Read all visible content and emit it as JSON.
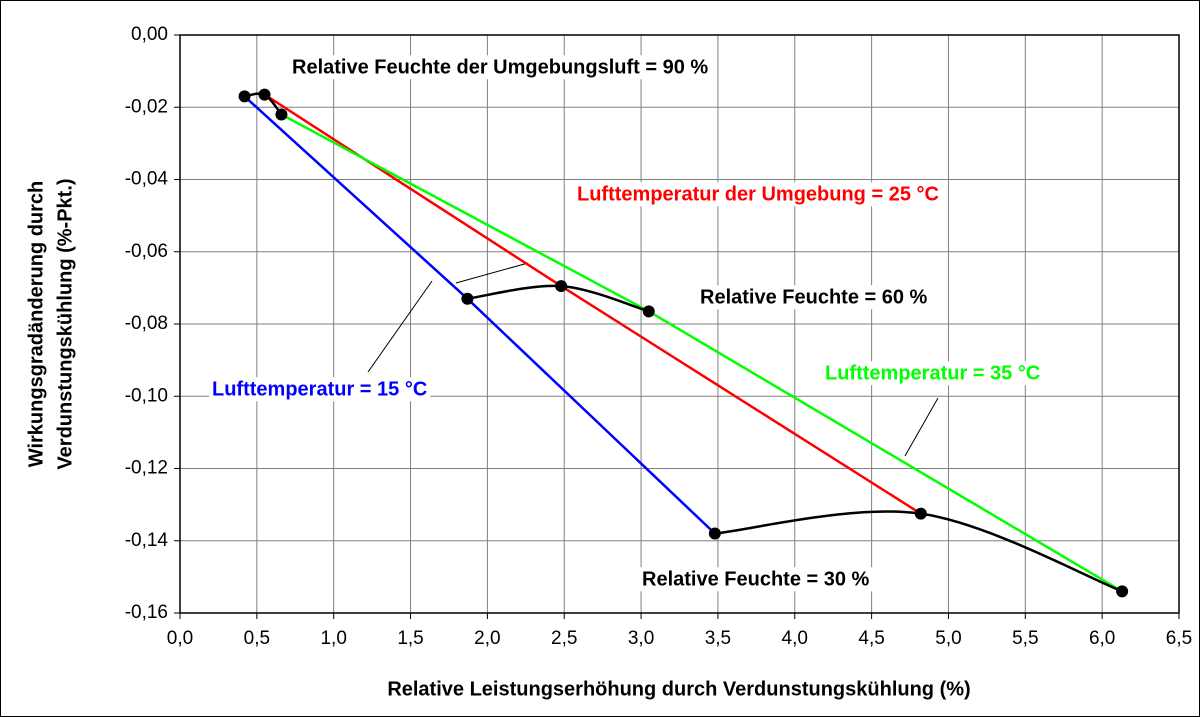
{
  "chart_data": {
    "type": "line",
    "xlabel": "Relative Leistungserhöhung durch Verdunstungskühlung (%)",
    "ylabel": [
      "Wirkungsgradänderung durch",
      "Verdunstungskühlung (%-Pkt.)"
    ],
    "xlim": [
      0,
      6.5
    ],
    "ylim": [
      -0.16,
      0
    ],
    "xticks": [
      {
        "value": 0,
        "label": "0,0"
      },
      {
        "value": 0.5,
        "label": "0,5"
      },
      {
        "value": 1,
        "label": "1,0"
      },
      {
        "value": 1.5,
        "label": "1,5"
      },
      {
        "value": 2,
        "label": "2,0"
      },
      {
        "value": 2.5,
        "label": "2,5"
      },
      {
        "value": 3,
        "label": "3,0"
      },
      {
        "value": 3.5,
        "label": "3,5"
      },
      {
        "value": 4,
        "label": "4,0"
      },
      {
        "value": 4.5,
        "label": "4,5"
      },
      {
        "value": 5,
        "label": "5,0"
      },
      {
        "value": 5.5,
        "label": "5,5"
      },
      {
        "value": 6,
        "label": "6,0"
      },
      {
        "value": 6.5,
        "label": "6,5"
      }
    ],
    "yticks": [
      {
        "value": 0,
        "label": "0,00"
      },
      {
        "value": -0.02,
        "label": "-0,02"
      },
      {
        "value": -0.04,
        "label": "-0,04"
      },
      {
        "value": -0.06,
        "label": "-0,06"
      },
      {
        "value": -0.08,
        "label": "-0,08"
      },
      {
        "value": -0.1,
        "label": "-0,10"
      },
      {
        "value": -0.12,
        "label": "-0,12"
      },
      {
        "value": -0.14,
        "label": "-0,14"
      },
      {
        "value": -0.16,
        "label": "-0,16"
      }
    ],
    "grid": true,
    "series": [
      {
        "name": "Lufttemperatur = 15 °C",
        "color": "#0000ff",
        "x": [
          0.42,
          1.87,
          3.48
        ],
        "values": [
          -0.017,
          -0.073,
          -0.138
        ]
      },
      {
        "name": "Lufttemperatur der Umgebung = 25 °C",
        "color": "#ff0000",
        "x": [
          0.55,
          2.48,
          4.82
        ],
        "values": [
          -0.0165,
          -0.0695,
          -0.1325
        ]
      },
      {
        "name": "Lufttemperatur = 35 °C",
        "color": "#00ff00",
        "x": [
          0.66,
          3.05,
          6.13
        ],
        "values": [
          -0.022,
          -0.0765,
          -0.154
        ]
      },
      {
        "name": "Relative Feuchte der Umgebungsluft = 90 %",
        "color": "#000000",
        "smooth": true,
        "markers": true,
        "x": [
          0.42,
          0.55,
          0.66
        ],
        "values": [
          -0.017,
          -0.0165,
          -0.022
        ]
      },
      {
        "name": "Relative Feuchte = 60 %",
        "color": "#000000",
        "smooth": true,
        "markers": true,
        "x": [
          1.87,
          2.48,
          3.05
        ],
        "values": [
          -0.073,
          -0.0695,
          -0.0765
        ]
      },
      {
        "name": "Relative Feuchte = 30 %",
        "color": "#000000",
        "smooth": true,
        "markers": true,
        "x": [
          3.48,
          4.82,
          6.13
        ],
        "values": [
          -0.138,
          -0.1325,
          -0.154
        ]
      }
    ]
  }
}
